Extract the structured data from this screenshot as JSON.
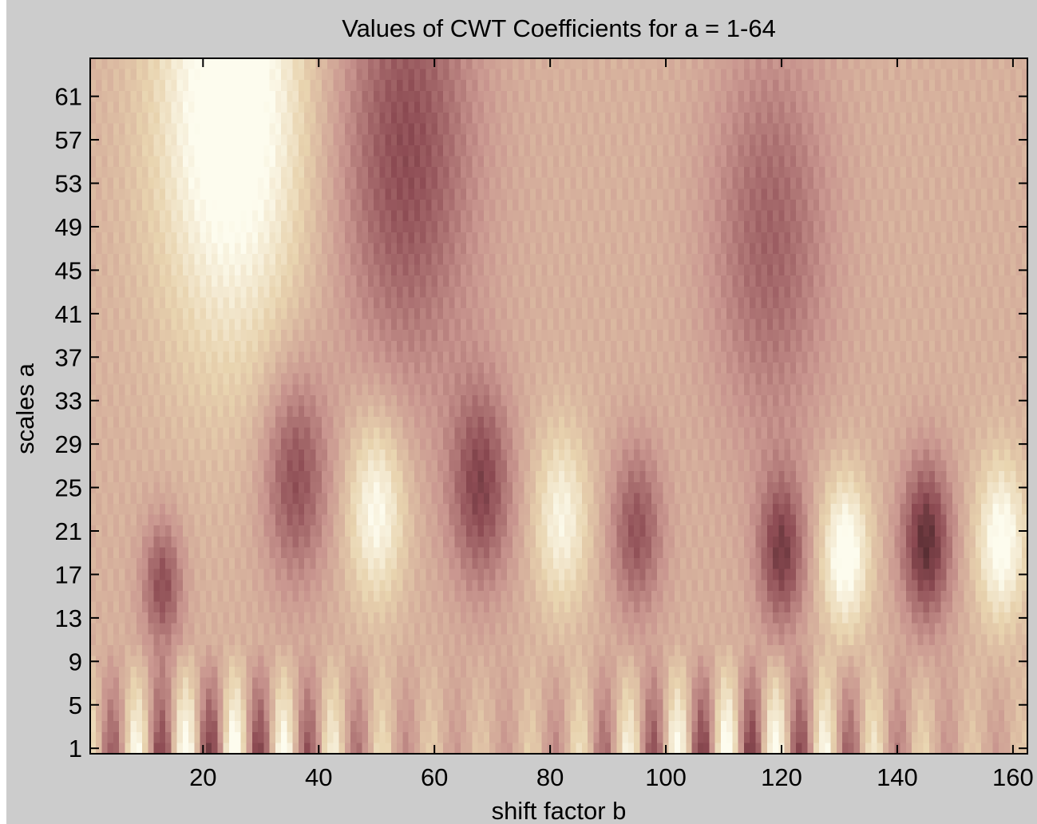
{
  "chart_data": {
    "type": "heatmap",
    "title": "Values of CWT Coefficients for a = 1-64",
    "xlabel": "shift factor b",
    "ylabel": "scales a",
    "xlim": [
      1,
      162
    ],
    "ylim": [
      1,
      64
    ],
    "x_ticks": [
      20,
      40,
      60,
      80,
      100,
      120,
      140,
      160
    ],
    "y_ticks": [
      1,
      5,
      9,
      13,
      17,
      21,
      25,
      29,
      33,
      37,
      41,
      45,
      49,
      53,
      57,
      61
    ],
    "colormap": "pink",
    "colors": {
      "dark": "#1a0c0c",
      "low": "#8c4a52",
      "mid": "#c9968f",
      "high": "#e8d3ae",
      "max": "#fdfcee",
      "figure_background": "#cccccc"
    },
    "features": [
      {
        "b": 13,
        "a": 16,
        "polarity": "low",
        "strength": 0.7
      },
      {
        "b": 36,
        "a": 26,
        "polarity": "low",
        "strength": 0.7
      },
      {
        "b": 68,
        "a": 25,
        "polarity": "low",
        "strength": 0.75
      },
      {
        "b": 95,
        "a": 21,
        "polarity": "low",
        "strength": 0.65
      },
      {
        "b": 120,
        "a": 19,
        "polarity": "low",
        "strength": 0.8
      },
      {
        "b": 145,
        "a": 20,
        "polarity": "low",
        "strength": 0.95
      },
      {
        "b": 55,
        "a": 56,
        "polarity": "low",
        "strength": 0.7
      },
      {
        "b": 118,
        "a": 48,
        "polarity": "low",
        "strength": 0.55
      },
      {
        "b": 25,
        "a": 60,
        "polarity": "high",
        "strength": 0.9
      },
      {
        "b": 50,
        "a": 23,
        "polarity": "high",
        "strength": 0.7
      },
      {
        "b": 82,
        "a": 22,
        "polarity": "high",
        "strength": 0.6
      },
      {
        "b": 131,
        "a": 19,
        "polarity": "high",
        "strength": 0.8
      },
      {
        "b": 158,
        "a": 20,
        "polarity": "high",
        "strength": 0.75
      }
    ]
  }
}
